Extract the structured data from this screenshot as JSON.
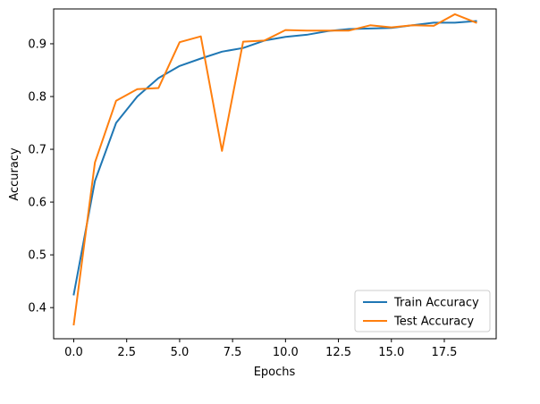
{
  "chart_data": {
    "type": "line",
    "xlabel": "Epochs",
    "ylabel": "Accuracy",
    "xlim": [
      -0.95,
      19.95
    ],
    "ylim": [
      0.341,
      0.966
    ],
    "xticks": [
      0.0,
      2.5,
      5.0,
      7.5,
      10.0,
      12.5,
      15.0,
      17.5
    ],
    "xtick_labels": [
      "0.0",
      "2.5",
      "5.0",
      "7.5",
      "10.0",
      "12.5",
      "15.0",
      "17.5"
    ],
    "yticks": [
      0.4,
      0.5,
      0.6,
      0.7,
      0.8,
      0.9
    ],
    "ytick_labels": [
      "0.4",
      "0.5",
      "0.6",
      "0.7",
      "0.8",
      "0.9"
    ],
    "grid": false,
    "legend_position": "lower-right",
    "x": [
      0,
      1,
      2,
      3,
      4,
      5,
      6,
      7,
      8,
      9,
      10,
      11,
      12,
      13,
      14,
      15,
      16,
      17,
      18,
      19
    ],
    "series": [
      {
        "name": "Train Accuracy",
        "color": "#1f77b4",
        "values": [
          0.425,
          0.64,
          0.75,
          0.8,
          0.835,
          0.858,
          0.872,
          0.885,
          0.892,
          0.906,
          0.913,
          0.917,
          0.924,
          0.928,
          0.929,
          0.93,
          0.935,
          0.94,
          0.94,
          0.943
        ]
      },
      {
        "name": "Test Accuracy",
        "color": "#ff7f0e",
        "values": [
          0.368,
          0.675,
          0.792,
          0.814,
          0.816,
          0.903,
          0.914,
          0.697,
          0.904,
          0.906,
          0.926,
          0.925,
          0.925,
          0.925,
          0.935,
          0.931,
          0.935,
          0.934,
          0.956,
          0.94
        ]
      }
    ]
  }
}
